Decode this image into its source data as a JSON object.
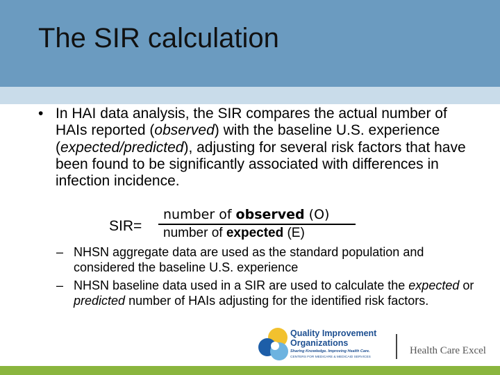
{
  "header": {
    "title": "The SIR calculation"
  },
  "bullet": {
    "segments": [
      {
        "text": "In HAI data analysis, the SIR compares the actual number of HAIs reported (",
        "style": "normal"
      },
      {
        "text": "observed",
        "style": "italic"
      },
      {
        "text": ") with the baseline U.S. experience (",
        "style": "normal"
      },
      {
        "text": "expected/predicted",
        "style": "italic"
      },
      {
        "text": "), adjusting for several risk factors that have been found to be significantly associated with differences in infection incidence.",
        "style": "normal"
      }
    ]
  },
  "formula": {
    "lhs": "SIR=",
    "numerator": [
      {
        "text": "number of ",
        "style": "normal"
      },
      {
        "text": "observed",
        "style": "bold"
      },
      {
        "text": " (O)",
        "style": "normal"
      }
    ],
    "denominator": [
      {
        "text": "number of ",
        "style": "normal"
      },
      {
        "text": "expected",
        "style": "bold"
      },
      {
        "text": " (E)",
        "style": "normal"
      }
    ]
  },
  "sub_bullets": [
    [
      {
        "text": "NHSN aggregate data are used as the standard population and considered the baseline U.S. experience",
        "style": "normal"
      }
    ],
    [
      {
        "text": "NHSN baseline data used in a SIR are used to calculate the ",
        "style": "normal"
      },
      {
        "text": "expected",
        "style": "italic"
      },
      {
        "text": " or ",
        "style": "normal"
      },
      {
        "text": "predicted",
        "style": "italic"
      },
      {
        "text": " number of HAIs adjusting for the identified risk factors.",
        "style": "normal"
      }
    ]
  ],
  "logos": {
    "qio": {
      "line1": "Quality Improvement",
      "line2": "Organizations",
      "tagline": "Sharing Knowledge. Improving Health Care.",
      "cms": "CENTERS FOR MEDICARE & MEDICAID SERVICES"
    },
    "hce": "Health Care Excel"
  }
}
